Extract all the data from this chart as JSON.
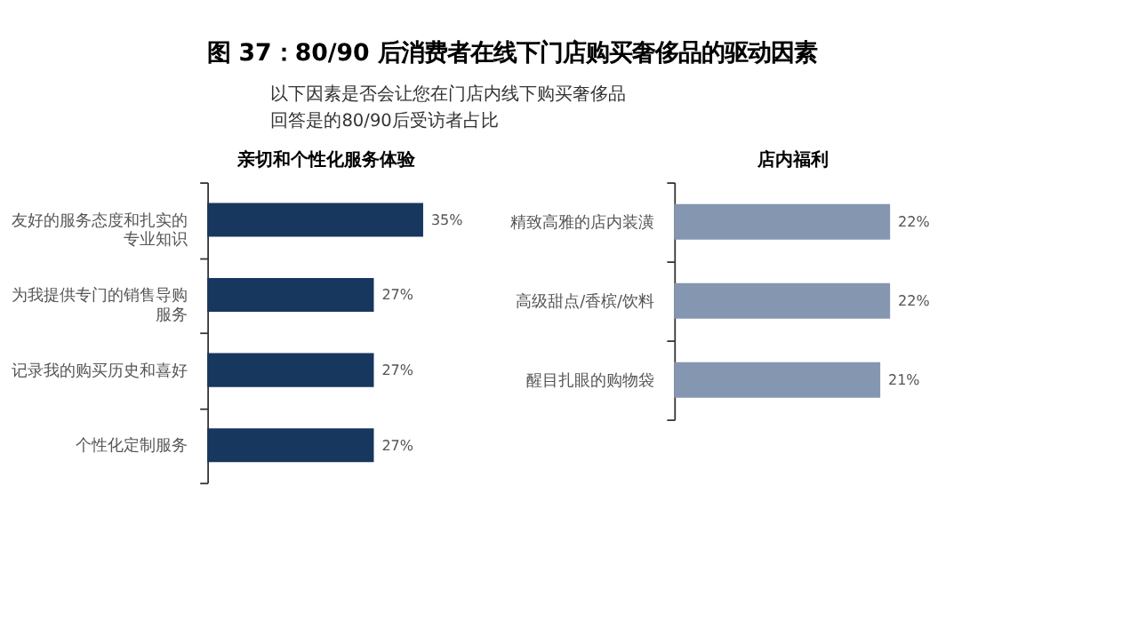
{
  "chart_data": [
    {
      "type": "other",
      "title": "图 37：80/90 后消费者在线下门店购买奢侈品的驱动因素",
      "subtitle": "以下因素是否会让您在门店内线下购买奢侈品",
      "annotations": [
        "回答是的80/90后受访者占比"
      ]
    },
    {
      "type": "bar",
      "orientation": "horizontal",
      "title": "亲切和个性化服务体验",
      "categories": [
        "友好的服务态度和扎实的专业知识",
        "为我提供专门的销售导购服务",
        "记录我的购买历史和喜好",
        "个性化定制服务"
      ],
      "values": [
        35,
        27,
        27,
        27
      ],
      "value_labels": [
        "35%",
        "27%",
        "27%",
        "27%"
      ],
      "color": "#17375e",
      "tick_labels": "y",
      "grid": false,
      "legend": false
    },
    {
      "type": "bar",
      "orientation": "horizontal",
      "title": "店内福利",
      "categories": [
        "精致高雅的店内装潢",
        "高级甜点/香槟/饮料",
        "醒目扎眼的购物袋"
      ],
      "values": [
        22,
        22,
        21
      ],
      "value_labels": [
        "22%",
        "22%",
        "21%"
      ],
      "color": "#8496b0",
      "tick_labels": "y",
      "grid": false,
      "legend": false
    }
  ]
}
